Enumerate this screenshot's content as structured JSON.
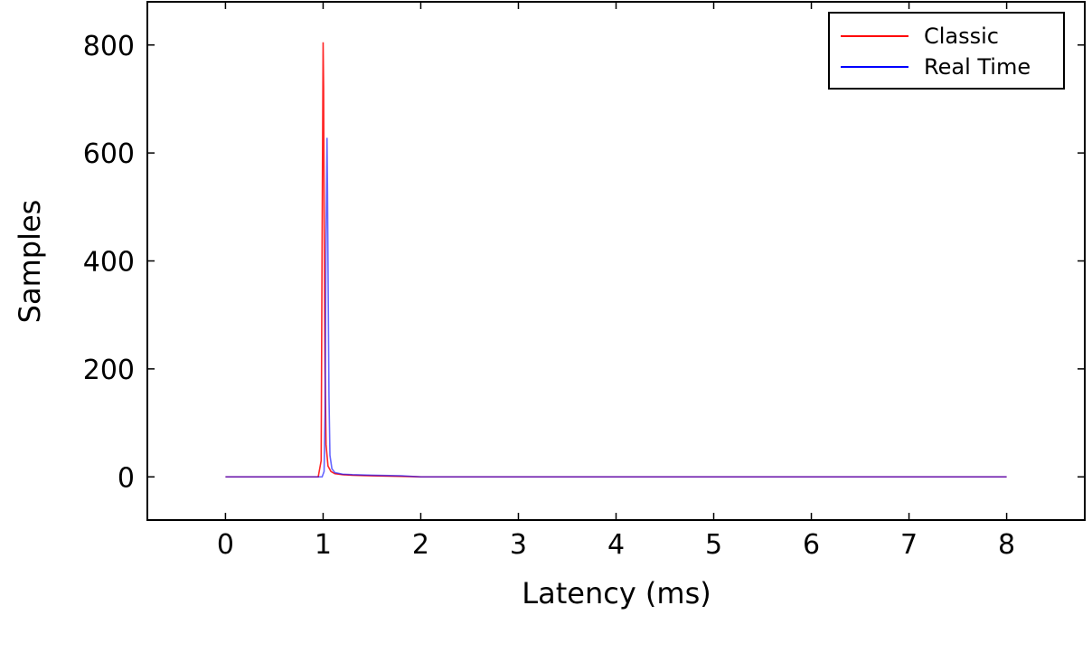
{
  "chart_data": {
    "type": "line",
    "title": "",
    "xlabel": "Latency (ms)",
    "ylabel": "Samples",
    "xlim": [
      -0.8,
      8.8
    ],
    "ylim": [
      -80,
      880
    ],
    "xticks": [
      0,
      1,
      2,
      3,
      4,
      5,
      6,
      7,
      8
    ],
    "yticks": [
      0,
      200,
      400,
      600,
      800
    ],
    "grid": false,
    "legend": "top-right",
    "series": [
      {
        "name": "Classic",
        "color": "#ff0000",
        "x": [
          0,
          0.95,
          0.98,
          0.99,
          1.0,
          1.005,
          1.01,
          1.02,
          1.03,
          1.05,
          1.08,
          1.12,
          1.2,
          1.3,
          1.5,
          1.8,
          2.0,
          8.0
        ],
        "y": [
          0,
          0,
          30,
          450,
          805,
          720,
          500,
          200,
          60,
          20,
          10,
          6,
          4,
          3,
          2,
          1,
          0,
          0
        ]
      },
      {
        "name": "Real Time",
        "color": "#0000ff",
        "x": [
          0,
          0.99,
          1.01,
          1.02,
          1.03,
          1.04,
          1.045,
          1.05,
          1.06,
          1.07,
          1.09,
          1.12,
          1.2,
          1.3,
          1.5,
          1.8,
          2.0,
          8.0
        ],
        "y": [
          0,
          0,
          10,
          120,
          450,
          628,
          530,
          400,
          150,
          40,
          15,
          8,
          5,
          4,
          3,
          2,
          0,
          0
        ]
      }
    ]
  }
}
